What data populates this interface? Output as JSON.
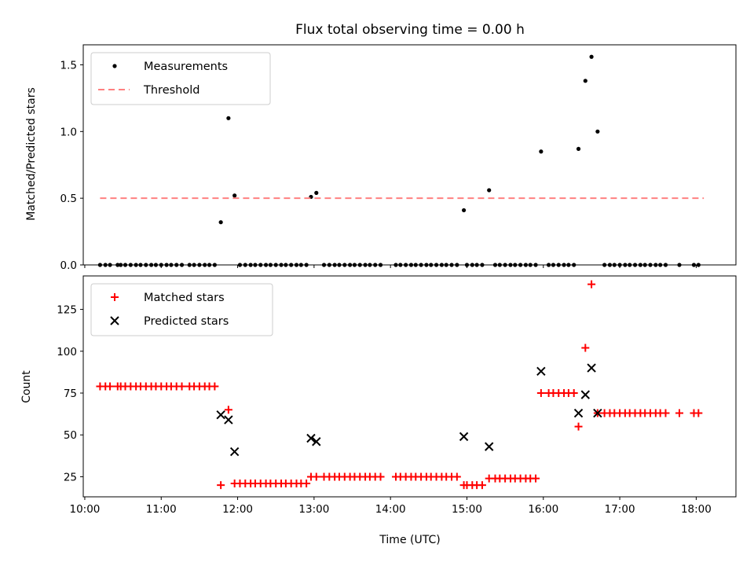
{
  "chart_data": [
    {
      "type": "scatter",
      "title": "Flux total observing time = 0.00 h",
      "xlabel": "",
      "ylabel": "Matched/Predicted stars",
      "xlim": [
        9.98,
        18.52
      ],
      "ylim": [
        0,
        1.65
      ],
      "yticks": [
        0.0,
        0.5,
        1.0,
        1.5
      ],
      "ytick_labels": [
        "0.0",
        "0.5",
        "1.0",
        "1.5"
      ],
      "legend_position": "top-left",
      "series": [
        {
          "name": "Measurements",
          "marker": "dot",
          "color": "#000000",
          "x": [
            10.2,
            10.27,
            10.33,
            10.43,
            10.47,
            10.53,
            10.6,
            10.67,
            10.73,
            10.8,
            10.87,
            10.93,
            11.0,
            11.07,
            11.13,
            11.2,
            11.27,
            11.37,
            11.43,
            11.5,
            11.57,
            11.63,
            11.7,
            11.78,
            11.88,
            11.96,
            12.03,
            12.1,
            12.17,
            12.23,
            12.3,
            12.37,
            12.43,
            12.5,
            12.57,
            12.63,
            12.7,
            12.77,
            12.83,
            12.9,
            12.96,
            13.03,
            13.13,
            13.2,
            13.27,
            13.33,
            13.4,
            13.47,
            13.53,
            13.6,
            13.67,
            13.73,
            13.8,
            13.87,
            14.07,
            14.13,
            14.2,
            14.27,
            14.33,
            14.4,
            14.47,
            14.53,
            14.6,
            14.67,
            14.73,
            14.8,
            14.87,
            14.96,
            15.0,
            15.07,
            15.13,
            15.2,
            15.29,
            15.37,
            15.43,
            15.5,
            15.57,
            15.63,
            15.7,
            15.77,
            15.83,
            15.9,
            15.97,
            16.07,
            16.13,
            16.2,
            16.27,
            16.33,
            16.4,
            16.46,
            16.55,
            16.63,
            16.71,
            16.8,
            16.87,
            16.93,
            17.0,
            17.07,
            17.13,
            17.2,
            17.27,
            17.33,
            17.4,
            17.47,
            17.53,
            17.6,
            17.78,
            17.97,
            18.03
          ],
          "y": [
            0,
            0,
            0,
            0,
            0,
            0,
            0,
            0,
            0,
            0,
            0,
            0,
            0,
            0,
            0,
            0,
            0,
            0,
            0,
            0,
            0,
            0,
            0,
            0.32,
            1.1,
            0.52,
            0,
            0,
            0,
            0,
            0,
            0,
            0,
            0,
            0,
            0,
            0,
            0,
            0,
            0,
            0.51,
            0.54,
            0,
            0,
            0,
            0,
            0,
            0,
            0,
            0,
            0,
            0,
            0,
            0,
            0,
            0,
            0,
            0,
            0,
            0,
            0,
            0,
            0,
            0,
            0,
            0,
            0,
            0.41,
            0,
            0,
            0,
            0,
            0.56,
            0,
            0,
            0,
            0,
            0,
            0,
            0,
            0,
            0,
            0.85,
            0,
            0,
            0,
            0,
            0,
            0,
            0.87,
            1.38,
            1.56,
            1.0,
            0,
            0,
            0,
            0,
            0,
            0,
            0,
            0,
            0,
            0,
            0,
            0,
            0,
            0,
            0,
            0
          ]
        },
        {
          "name": "Threshold",
          "marker": "dashed-line",
          "color": "#ff8080",
          "x": [
            10.2,
            18.1
          ],
          "y": [
            0.5,
            0.5
          ]
        }
      ]
    },
    {
      "type": "scatter",
      "title": "",
      "xlabel": "Time (UTC)",
      "ylabel": "Count",
      "xlim": [
        9.98,
        18.52
      ],
      "ylim": [
        13,
        145
      ],
      "xticks": [
        10,
        11,
        12,
        13,
        14,
        15,
        16,
        17,
        18
      ],
      "xtick_labels": [
        "10:00",
        "11:00",
        "12:00",
        "13:00",
        "14:00",
        "15:00",
        "16:00",
        "17:00",
        "18:00"
      ],
      "yticks": [
        25,
        50,
        75,
        100,
        125
      ],
      "ytick_labels": [
        "25",
        "50",
        "75",
        "100",
        "125"
      ],
      "legend_position": "top-left",
      "series": [
        {
          "name": "Matched stars",
          "marker": "plus",
          "color": "#ff0000",
          "x": [
            10.2,
            10.27,
            10.33,
            10.43,
            10.47,
            10.53,
            10.6,
            10.67,
            10.73,
            10.8,
            10.87,
            10.93,
            11.0,
            11.07,
            11.13,
            11.2,
            11.27,
            11.37,
            11.43,
            11.5,
            11.57,
            11.63,
            11.7,
            11.78,
            11.88,
            11.96,
            12.03,
            12.1,
            12.17,
            12.23,
            12.3,
            12.37,
            12.43,
            12.5,
            12.57,
            12.63,
            12.7,
            12.77,
            12.83,
            12.9,
            12.96,
            13.03,
            13.13,
            13.2,
            13.27,
            13.33,
            13.4,
            13.47,
            13.53,
            13.6,
            13.67,
            13.73,
            13.8,
            13.87,
            14.07,
            14.13,
            14.2,
            14.27,
            14.33,
            14.4,
            14.47,
            14.53,
            14.6,
            14.67,
            14.73,
            14.8,
            14.87,
            14.96,
            15.0,
            15.07,
            15.13,
            15.2,
            15.29,
            15.37,
            15.43,
            15.5,
            15.57,
            15.63,
            15.7,
            15.77,
            15.83,
            15.9,
            15.97,
            16.07,
            16.13,
            16.2,
            16.27,
            16.33,
            16.4,
            16.46,
            16.55,
            16.63,
            16.71,
            16.8,
            16.87,
            16.93,
            17.0,
            17.07,
            17.13,
            17.2,
            17.27,
            17.33,
            17.4,
            17.47,
            17.53,
            17.6,
            17.78,
            17.97,
            18.03
          ],
          "y": [
            79,
            79,
            79,
            79,
            79,
            79,
            79,
            79,
            79,
            79,
            79,
            79,
            79,
            79,
            79,
            79,
            79,
            79,
            79,
            79,
            79,
            79,
            79,
            20,
            65,
            21,
            21,
            21,
            21,
            21,
            21,
            21,
            21,
            21,
            21,
            21,
            21,
            21,
            21,
            21,
            25,
            25,
            25,
            25,
            25,
            25,
            25,
            25,
            25,
            25,
            25,
            25,
            25,
            25,
            25,
            25,
            25,
            25,
            25,
            25,
            25,
            25,
            25,
            25,
            25,
            25,
            25,
            20,
            20,
            20,
            20,
            20,
            24,
            24,
            24,
            24,
            24,
            24,
            24,
            24,
            24,
            24,
            75,
            75,
            75,
            75,
            75,
            75,
            75,
            55,
            102,
            140,
            63,
            63,
            63,
            63,
            63,
            63,
            63,
            63,
            63,
            63,
            63,
            63,
            63,
            63,
            63,
            63,
            63
          ]
        },
        {
          "name": "Predicted stars",
          "marker": "x",
          "color": "#000000",
          "x": [
            11.78,
            11.88,
            11.96,
            12.96,
            13.03,
            14.96,
            15.29,
            15.97,
            16.46,
            16.55,
            16.63,
            16.71
          ],
          "y": [
            62,
            59,
            40,
            48,
            46,
            49,
            43,
            88,
            63,
            74,
            90,
            63
          ]
        }
      ]
    }
  ]
}
